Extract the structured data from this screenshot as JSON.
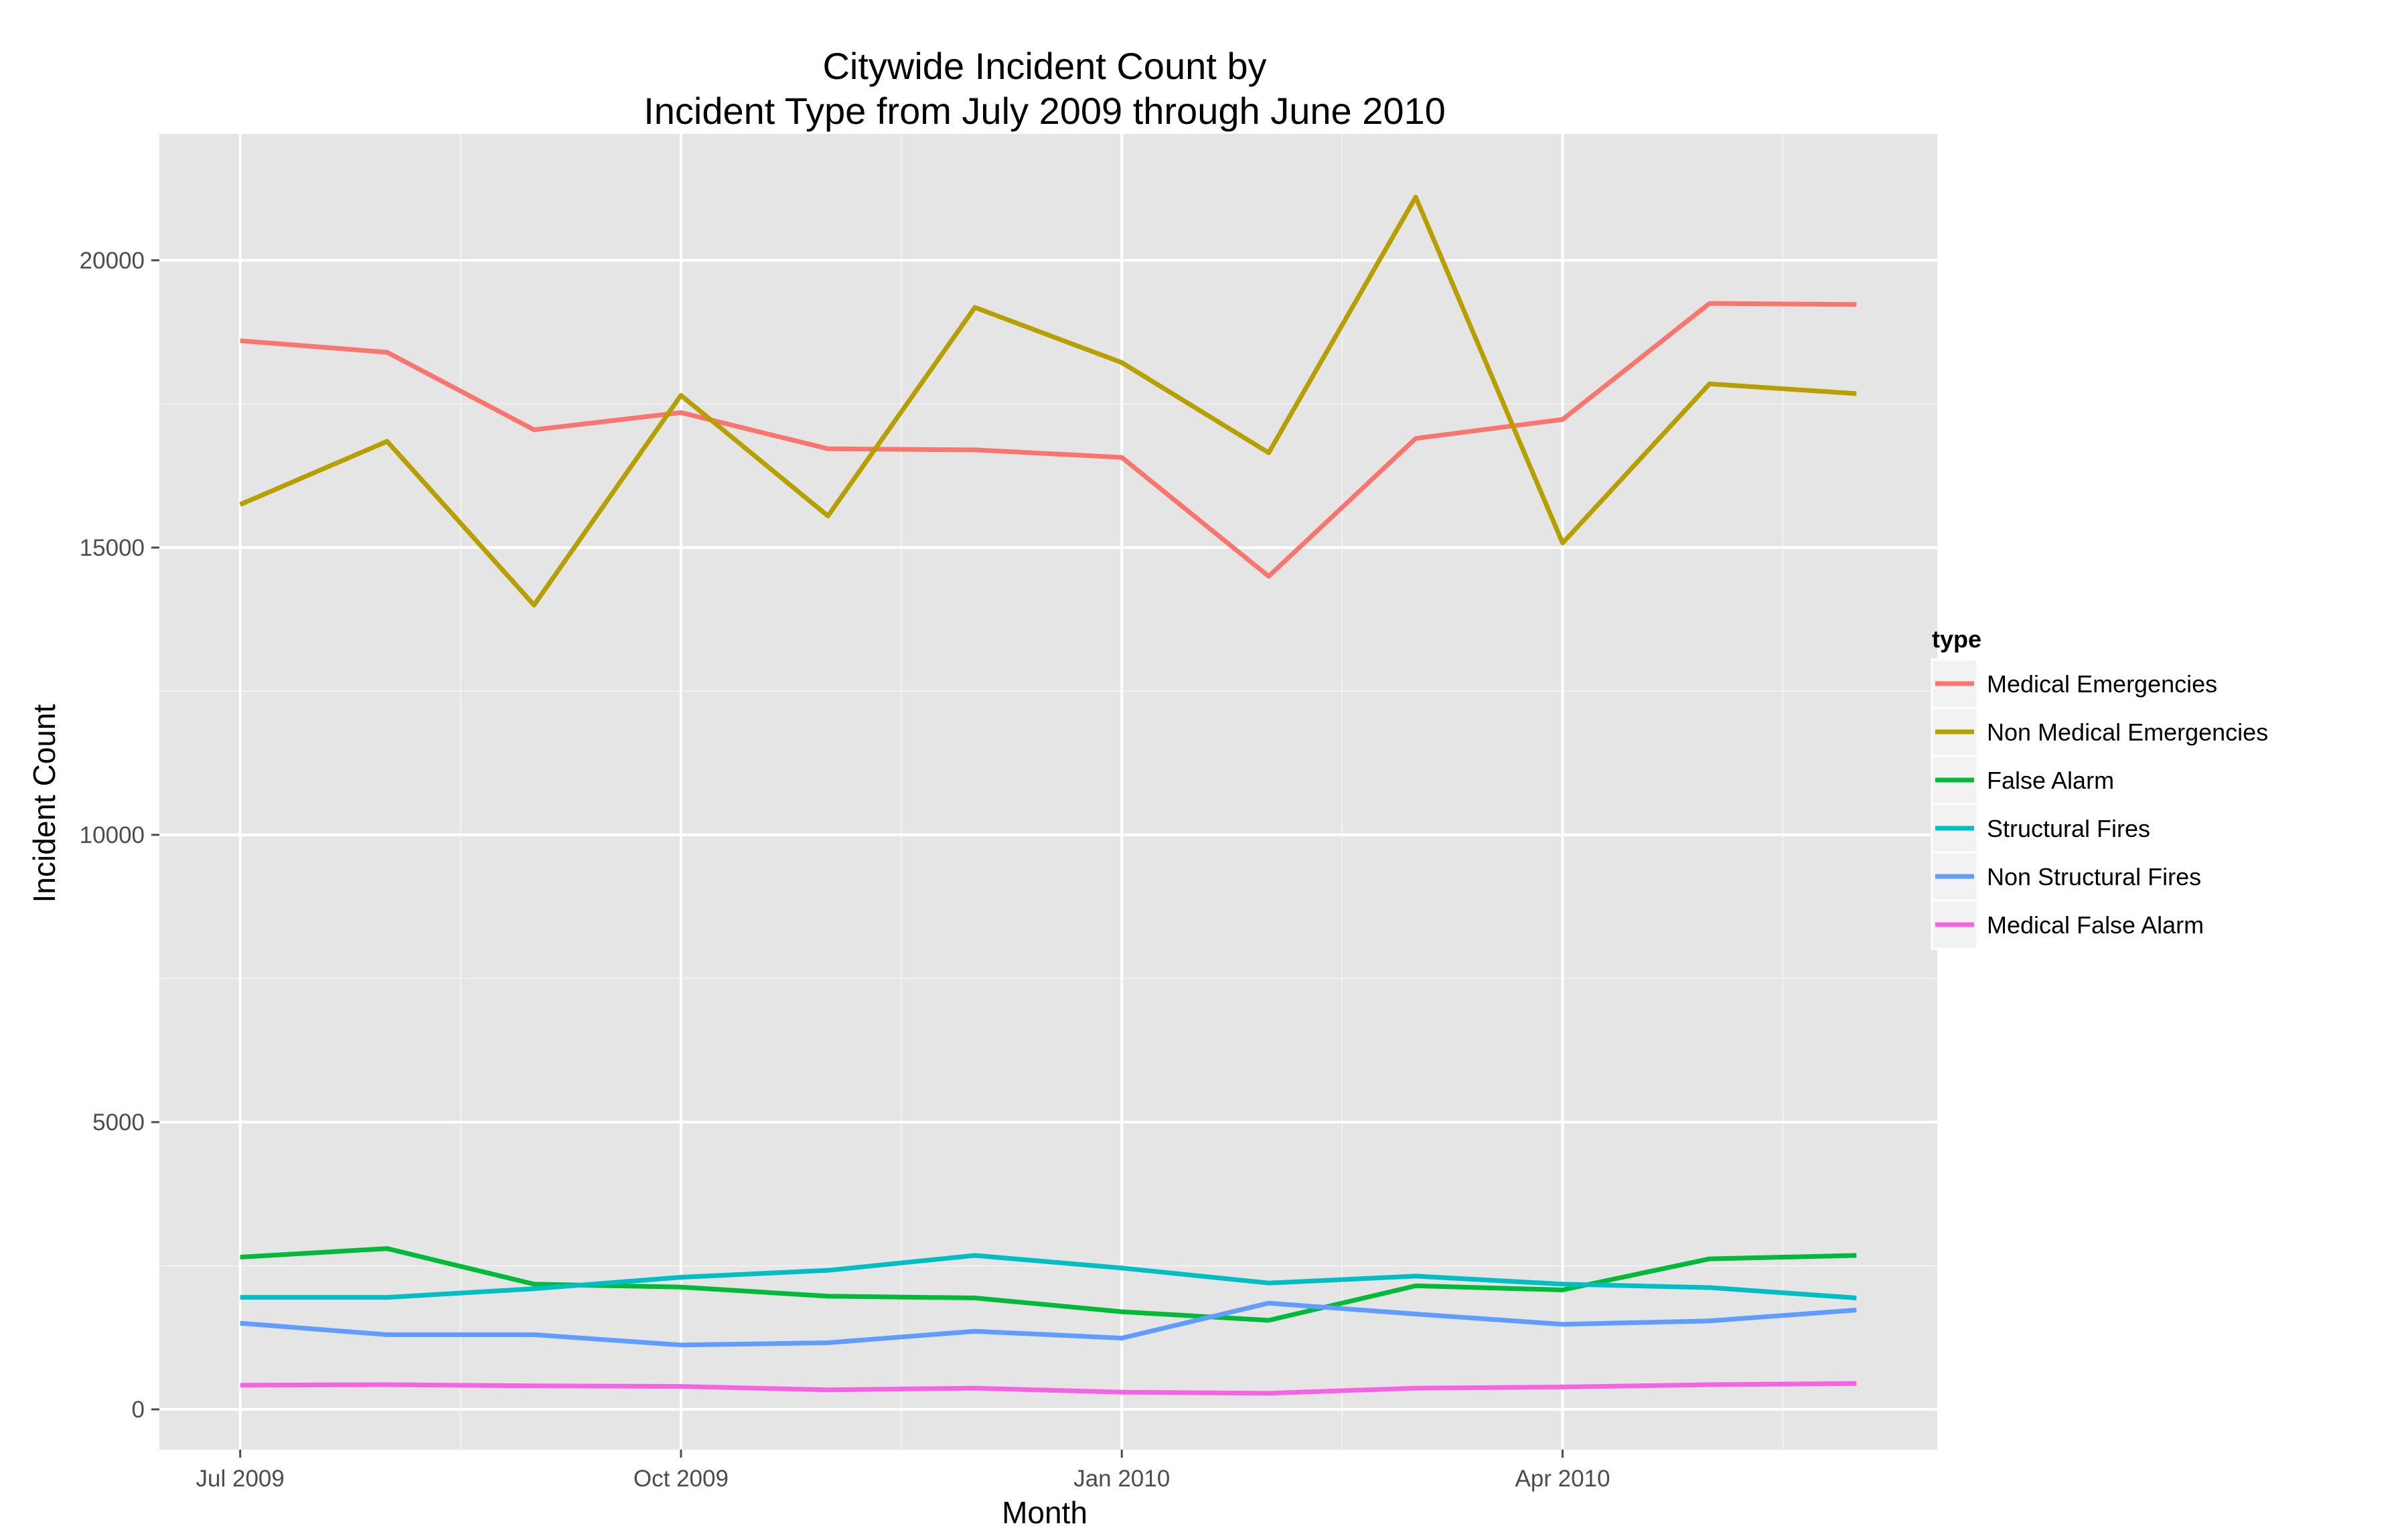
{
  "chart_data": {
    "type": "line",
    "title": [
      "Citywide Incident Count by",
      "Incident Type from July 2009 through June 2010"
    ],
    "xlabel": "Month",
    "ylabel": "Incident Count",
    "x": [
      "2009-07",
      "2009-08",
      "2009-09",
      "2009-10",
      "2009-11",
      "2009-12",
      "2010-01",
      "2010-02",
      "2010-03",
      "2010-04",
      "2010-05",
      "2010-06"
    ],
    "x_ticks": [
      {
        "value": "2009-07",
        "label": "Jul 2009"
      },
      {
        "value": "2009-10",
        "label": "Oct 2009"
      },
      {
        "value": "2010-01",
        "label": "Jan 2010"
      },
      {
        "value": "2010-04",
        "label": "Apr 2010"
      }
    ],
    "ylim": [
      -700,
      22200
    ],
    "y_ticks": [
      0,
      5000,
      10000,
      15000,
      20000
    ],
    "grid": true,
    "panel_background": "#e5e5e5",
    "legend": {
      "title": "type",
      "position": "right"
    },
    "series": [
      {
        "name": "Medical Emergencies",
        "color": "#f8766d",
        "values": [
          18600,
          18400,
          17050,
          17350,
          16720,
          16700,
          16570,
          14500,
          16900,
          17230,
          19250,
          19230
        ]
      },
      {
        "name": "Non Medical Emergencies",
        "color": "#b79f00",
        "values": [
          15750,
          16850,
          14000,
          17650,
          15550,
          19180,
          18220,
          16650,
          21100,
          15080,
          17850,
          17680
        ]
      },
      {
        "name": "False Alarm",
        "color": "#00ba38",
        "values": [
          2650,
          2800,
          2180,
          2130,
          1970,
          1940,
          1700,
          1550,
          2150,
          2080,
          2620,
          2680
        ]
      },
      {
        "name": "Structural Fires",
        "color": "#00bfc4",
        "values": [
          1950,
          1950,
          2100,
          2300,
          2420,
          2680,
          2460,
          2200,
          2320,
          2180,
          2120,
          1940
        ]
      },
      {
        "name": "Non Structural Fires",
        "color": "#619cff",
        "values": [
          1500,
          1300,
          1300,
          1120,
          1160,
          1360,
          1240,
          1850,
          1660,
          1480,
          1540,
          1730
        ]
      },
      {
        "name": "Medical False Alarm",
        "color": "#f564e3",
        "values": [
          420,
          430,
          410,
          400,
          340,
          370,
          300,
          280,
          370,
          390,
          430,
          450
        ]
      }
    ]
  }
}
